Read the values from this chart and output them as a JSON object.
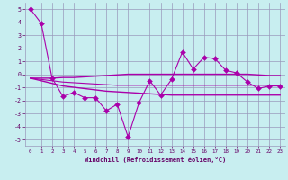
{
  "xlabel": "Windchill (Refroidissement éolien,°C)",
  "x": [
    0,
    1,
    2,
    3,
    4,
    5,
    6,
    7,
    8,
    9,
    10,
    11,
    12,
    13,
    14,
    15,
    16,
    17,
    18,
    19,
    20,
    21,
    22,
    23
  ],
  "line_main": [
    5.0,
    3.9,
    -0.3,
    -1.7,
    -1.4,
    -1.8,
    -1.8,
    -2.8,
    -2.3,
    -4.8,
    -2.2,
    -0.5,
    -1.6,
    -0.4,
    1.7,
    0.4,
    1.3,
    1.2,
    0.3,
    0.1,
    -0.6,
    -1.1,
    -0.9,
    -0.9
  ],
  "line_upper": [
    -0.3,
    -0.3,
    -0.3,
    -0.25,
    -0.25,
    -0.2,
    -0.15,
    -0.1,
    -0.05,
    0.0,
    0.0,
    0.0,
    0.0,
    0.0,
    0.0,
    0.0,
    0.0,
    0.0,
    0.0,
    0.0,
    0.0,
    -0.05,
    -0.1,
    -0.1
  ],
  "line_lower": [
    -0.3,
    -0.5,
    -0.7,
    -0.9,
    -1.0,
    -1.1,
    -1.2,
    -1.3,
    -1.35,
    -1.4,
    -1.45,
    -1.5,
    -1.55,
    -1.6,
    -1.6,
    -1.6,
    -1.6,
    -1.6,
    -1.6,
    -1.6,
    -1.6,
    -1.6,
    -1.6,
    -1.6
  ],
  "line_mid": [
    -0.3,
    -0.4,
    -0.5,
    -0.6,
    -0.65,
    -0.7,
    -0.75,
    -0.8,
    -0.85,
    -0.85,
    -0.85,
    -0.85,
    -0.85,
    -0.85,
    -0.85,
    -0.85,
    -0.85,
    -0.85,
    -0.85,
    -0.85,
    -0.85,
    -0.85,
    -0.85,
    -0.85
  ],
  "ylim": [
    -5.5,
    5.5
  ],
  "yticks": [
    -5,
    -4,
    -3,
    -2,
    -1,
    0,
    1,
    2,
    3,
    4,
    5
  ],
  "xlim": [
    -0.5,
    23.5
  ],
  "bg_color": "#c8eef0",
  "grid_color": "#9999bb",
  "line_color": "#aa00aa",
  "font_color": "#660066",
  "markersize": 3.0,
  "lw_main": 0.8,
  "lw_band": 1.0
}
